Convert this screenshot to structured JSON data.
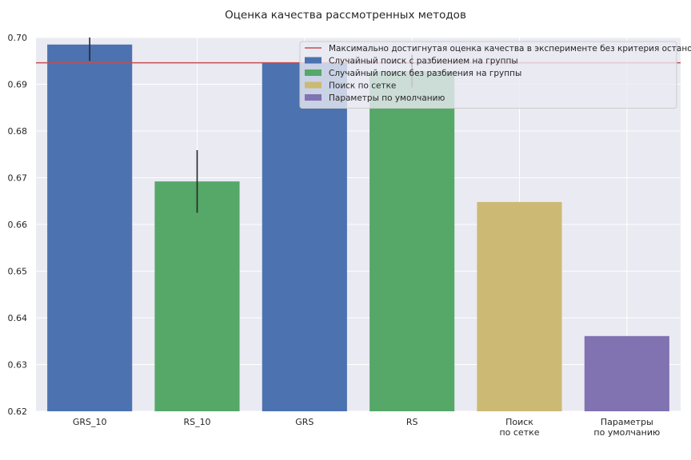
{
  "chart_data": {
    "type": "bar",
    "title": "Оценка качества рассмотренных методов",
    "xlabel": "",
    "ylabel": "",
    "categories": [
      [
        "GRS_10"
      ],
      [
        "RS_10"
      ],
      [
        "GRS"
      ],
      [
        "RS"
      ],
      [
        "Поиск",
        "по сетке"
      ],
      [
        "Параметры",
        "по умолчанию"
      ]
    ],
    "values": [
      0.6985,
      0.6692,
      0.6946,
      0.6928,
      0.6648,
      0.6361
    ],
    "errors": [
      0.0035,
      0.0067,
      null,
      0.0035,
      null,
      null
    ],
    "groups": [
      0,
      1,
      0,
      1,
      2,
      3
    ],
    "reference_line": {
      "value": 0.6946,
      "label": "Максимально достигнутая оценка качества в эксперименте без критерия остановки",
      "color": "#c44e52"
    },
    "legend": [
      {
        "label": "Случайный поиск с разбиением на группы",
        "color": "#4c72b0"
      },
      {
        "label": "Случайный поиск без разбиения на группы",
        "color": "#55a868"
      },
      {
        "label": "Поиск по сетке",
        "color": "#ccb974"
      },
      {
        "label": "Параметры по умолчанию",
        "color": "#8172b2"
      }
    ],
    "legend_position": "top-right",
    "ylim": [
      0.62,
      0.7
    ],
    "yticks": [
      "0.62",
      "0.63",
      "0.64",
      "0.65",
      "0.66",
      "0.67",
      "0.68",
      "0.69",
      "0.70"
    ],
    "grid": true,
    "background_color": "#eaeaf2"
  }
}
